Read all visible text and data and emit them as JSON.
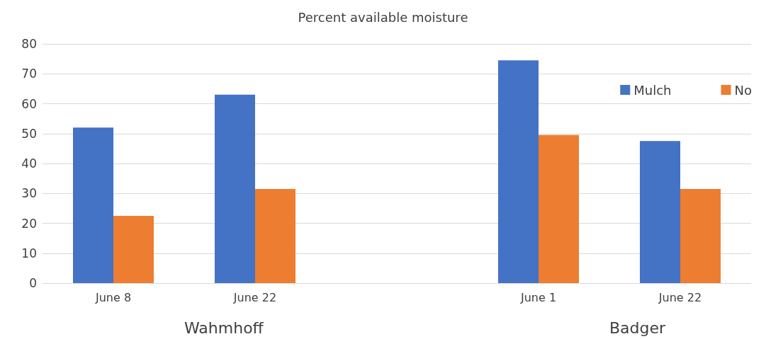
{
  "chart_data": {
    "type": "bar",
    "title": "Percent available moisture",
    "categories": [
      "June 8",
      "June 22",
      null,
      "June 1",
      "June 22"
    ],
    "series": [
      {
        "name": "Mulch",
        "color": "#4472c4",
        "values": [
          52,
          63,
          null,
          74.5,
          47.5
        ]
      },
      {
        "name": "No",
        "color": "#ed7d31",
        "values": [
          22.5,
          31.5,
          null,
          49.5,
          31.5
        ]
      }
    ],
    "ylim": [
      0,
      80
    ],
    "yticks": [
      0,
      10,
      20,
      30,
      40,
      50,
      60,
      70,
      80
    ],
    "grid": "y",
    "legend": "top right",
    "annotations": [
      "Wahmhoff",
      "Badger"
    ]
  }
}
